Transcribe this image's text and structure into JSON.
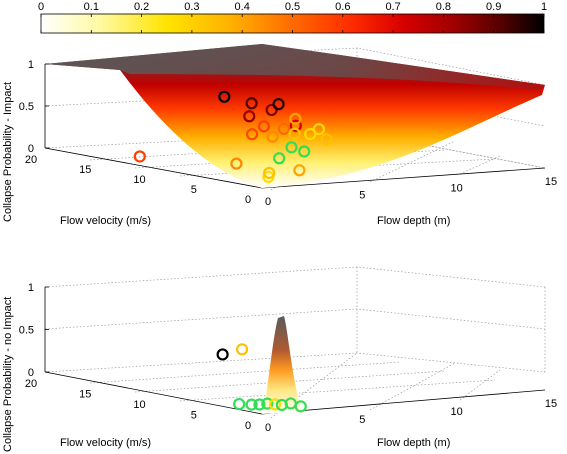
{
  "colorbar": {
    "ticks": [
      "0",
      "0.1",
      "0.2",
      "0.3",
      "0.4",
      "0.5",
      "0.6",
      "0.7",
      "0.8",
      "0.9",
      "1"
    ],
    "colormap": [
      "#ffffff",
      "#fff9a0",
      "#ffe400",
      "#ffb000",
      "#ff7a00",
      "#ff3c00",
      "#e00000",
      "#a00000",
      "#5a0000",
      "#000000"
    ]
  },
  "chart_data": [
    {
      "type": "scatter",
      "plot_kind": "3d-surface-with-scatter",
      "zlabel": "Collapse Probability - Impact",
      "xlabel": "Flow depth (m)",
      "ylabel": "Flow velocity (m/s)",
      "xticks": [
        "0",
        "5",
        "10",
        "15"
      ],
      "yticks": [
        "0",
        "5",
        "10",
        "15",
        "20"
      ],
      "zticks": [
        "0",
        "0.5",
        "1"
      ],
      "xlim": [
        0,
        15
      ],
      "ylim": [
        0,
        20
      ],
      "zlim": [
        0,
        1
      ],
      "grid": true,
      "surface": "shaded fragility surface rising from 0 at the origin toward 1 at high depth and velocity",
      "points": [
        {
          "x": 1.2,
          "y": 3.0,
          "z": 0.55,
          "c": 0.45
        },
        {
          "x": 2.0,
          "y": 2.5,
          "z": 0.52,
          "c": 0.35
        },
        {
          "x": 2.4,
          "y": 4.0,
          "z": 0.6,
          "c": 0.55
        },
        {
          "x": 3.0,
          "y": 3.2,
          "z": 0.58,
          "c": 0.4
        },
        {
          "x": 3.4,
          "y": 2.8,
          "z": 0.62,
          "c": 0.7
        },
        {
          "x": 3.8,
          "y": 3.6,
          "z": 0.5,
          "c": 0.25
        },
        {
          "x": 4.3,
          "y": 4.4,
          "z": 0.65,
          "c": 0.3
        },
        {
          "x": 4.8,
          "y": 3.1,
          "z": 0.55,
          "c": 0.2
        },
        {
          "x": 2.6,
          "y": 1.8,
          "z": 0.4,
          "c": 0.15
        },
        {
          "x": 3.1,
          "y": 1.5,
          "z": 0.35,
          "c": 0.1
        },
        {
          "x": 1.6,
          "y": 1.2,
          "z": 0.3,
          "c": 0.12
        },
        {
          "x": 2.2,
          "y": 5.0,
          "z": 0.7,
          "c": 0.8
        },
        {
          "x": 3.5,
          "y": 5.2,
          "z": 0.75,
          "c": 0.85
        },
        {
          "x": 4.1,
          "y": 5.6,
          "z": 0.8,
          "c": 0.95
        },
        {
          "x": 2.9,
          "y": 6.0,
          "z": 0.82,
          "c": 0.9
        },
        {
          "x": 1.8,
          "y": 6.6,
          "z": 0.9,
          "c": 1.0
        },
        {
          "x": 0.6,
          "y": 3.4,
          "z": 0.2,
          "c": 0.35
        },
        {
          "x": 5.2,
          "y": 4.6,
          "z": 0.45,
          "c": 0.2
        },
        {
          "x": 5.6,
          "y": 3.8,
          "z": 0.4,
          "c": 0.25
        },
        {
          "x": 1.0,
          "y": 13.0,
          "z": 0.05,
          "c": 0.55
        },
        {
          "x": 0.8,
          "y": 0.8,
          "z": 0.1,
          "c": 0.2
        },
        {
          "x": 1.3,
          "y": 1.6,
          "z": 0.12,
          "c": 0.25
        },
        {
          "x": 2.5,
          "y": 0.9,
          "z": 0.15,
          "c": 0.3
        }
      ]
    },
    {
      "type": "scatter",
      "plot_kind": "3d-surface-with-scatter",
      "zlabel": "Collapse Probability - no Impact",
      "xlabel": "Flow depth (m)",
      "ylabel": "Flow velocity (m/s)",
      "xticks": [
        "0",
        "5",
        "10",
        "15"
      ],
      "yticks": [
        "0",
        "5",
        "10",
        "15",
        "20"
      ],
      "zticks": [
        "0",
        "0.5",
        "1"
      ],
      "xlim": [
        0,
        15
      ],
      "ylim": [
        0,
        20
      ],
      "zlim": [
        0,
        1
      ],
      "grid": true,
      "surface": "narrow peaked fragility surface reaching about 0.7 near the origin",
      "points": [
        {
          "x": 0.5,
          "y": 4.5,
          "z": 0.58,
          "c": 1.0
        },
        {
          "x": 0.9,
          "y": 3.4,
          "z": 0.66,
          "c": 0.25
        },
        {
          "x": 0.6,
          "y": 2.0,
          "z": 0.05,
          "c": 0.15
        },
        {
          "x": 0.9,
          "y": 1.8,
          "z": 0.05,
          "c": 0.18
        },
        {
          "x": 1.2,
          "y": 1.6,
          "z": 0.06,
          "c": 0.15
        },
        {
          "x": 1.5,
          "y": 1.4,
          "z": 0.05,
          "c": 0.2
        },
        {
          "x": 1.8,
          "y": 1.3,
          "z": 0.04,
          "c": 0.15
        },
        {
          "x": 0.4,
          "y": 2.8,
          "z": 0.04,
          "c": 0.12
        },
        {
          "x": 2.4,
          "y": 0.6,
          "z": 0.03,
          "c": 0.1
        },
        {
          "x": 2.1,
          "y": 1.0,
          "z": 0.06,
          "c": 0.18
        }
      ]
    }
  ]
}
